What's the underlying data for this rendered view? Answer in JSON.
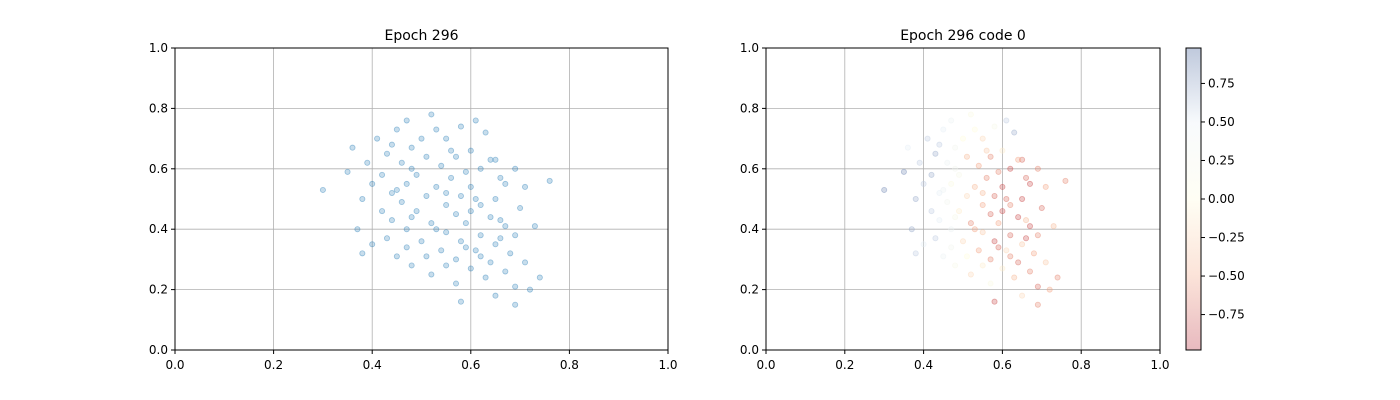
{
  "figure": {
    "background": "#ffffff",
    "grid_color": "#b0b0b0"
  },
  "chart_data": [
    {
      "type": "scatter",
      "title": "Epoch 296",
      "xlabel": "",
      "ylabel": "",
      "xlim": [
        0,
        1
      ],
      "ylim": [
        0,
        1
      ],
      "xticks": [
        "0.0",
        "0.2",
        "0.4",
        "0.6",
        "0.8",
        "1.0"
      ],
      "yticks": [
        "0.0",
        "0.2",
        "0.4",
        "0.6",
        "0.8",
        "1.0"
      ],
      "grid": true,
      "marker_color": "#1f77b4",
      "marker_alpha": 0.25,
      "points": [
        [
          0.52,
          0.78
        ],
        [
          0.47,
          0.76
        ],
        [
          0.61,
          0.76
        ],
        [
          0.58,
          0.74
        ],
        [
          0.53,
          0.73
        ],
        [
          0.45,
          0.73
        ],
        [
          0.63,
          0.72
        ],
        [
          0.41,
          0.7
        ],
        [
          0.55,
          0.7
        ],
        [
          0.36,
          0.67
        ],
        [
          0.48,
          0.67
        ],
        [
          0.6,
          0.66
        ],
        [
          0.43,
          0.65
        ],
        [
          0.51,
          0.64
        ],
        [
          0.57,
          0.64
        ],
        [
          0.65,
          0.63
        ],
        [
          0.39,
          0.62
        ],
        [
          0.46,
          0.62
        ],
        [
          0.54,
          0.61
        ],
        [
          0.62,
          0.6
        ],
        [
          0.69,
          0.6
        ],
        [
          0.35,
          0.59
        ],
        [
          0.42,
          0.58
        ],
        [
          0.49,
          0.58
        ],
        [
          0.56,
          0.57
        ],
        [
          0.66,
          0.57
        ],
        [
          0.76,
          0.56
        ],
        [
          0.4,
          0.55
        ],
        [
          0.47,
          0.55
        ],
        [
          0.53,
          0.54
        ],
        [
          0.6,
          0.54
        ],
        [
          0.71,
          0.54
        ],
        [
          0.3,
          0.53
        ],
        [
          0.44,
          0.52
        ],
        [
          0.51,
          0.51
        ],
        [
          0.58,
          0.51
        ],
        [
          0.65,
          0.5
        ],
        [
          0.38,
          0.5
        ],
        [
          0.46,
          0.49
        ],
        [
          0.55,
          0.48
        ],
        [
          0.62,
          0.48
        ],
        [
          0.7,
          0.47
        ],
        [
          0.42,
          0.46
        ],
        [
          0.49,
          0.46
        ],
        [
          0.57,
          0.45
        ],
        [
          0.64,
          0.44
        ],
        [
          0.44,
          0.43
        ],
        [
          0.52,
          0.42
        ],
        [
          0.59,
          0.42
        ],
        [
          0.67,
          0.41
        ],
        [
          0.73,
          0.41
        ],
        [
          0.37,
          0.4
        ],
        [
          0.47,
          0.4
        ],
        [
          0.55,
          0.39
        ],
        [
          0.62,
          0.38
        ],
        [
          0.69,
          0.38
        ],
        [
          0.43,
          0.37
        ],
        [
          0.5,
          0.36
        ],
        [
          0.58,
          0.36
        ],
        [
          0.65,
          0.35
        ],
        [
          0.4,
          0.35
        ],
        [
          0.47,
          0.34
        ],
        [
          0.54,
          0.33
        ],
        [
          0.61,
          0.33
        ],
        [
          0.68,
          0.32
        ],
        [
          0.38,
          0.32
        ],
        [
          0.51,
          0.31
        ],
        [
          0.57,
          0.3
        ],
        [
          0.64,
          0.29
        ],
        [
          0.71,
          0.29
        ],
        [
          0.48,
          0.28
        ],
        [
          0.6,
          0.27
        ],
        [
          0.67,
          0.26
        ],
        [
          0.52,
          0.25
        ],
        [
          0.63,
          0.24
        ],
        [
          0.74,
          0.24
        ],
        [
          0.57,
          0.22
        ],
        [
          0.69,
          0.21
        ],
        [
          0.72,
          0.2
        ],
        [
          0.65,
          0.18
        ],
        [
          0.58,
          0.16
        ],
        [
          0.69,
          0.15
        ],
        [
          0.5,
          0.7
        ],
        [
          0.44,
          0.68
        ],
        [
          0.56,
          0.66
        ],
        [
          0.64,
          0.63
        ],
        [
          0.48,
          0.6
        ],
        [
          0.59,
          0.59
        ],
        [
          0.67,
          0.55
        ],
        [
          0.45,
          0.53
        ],
        [
          0.55,
          0.52
        ],
        [
          0.61,
          0.5
        ],
        [
          0.48,
          0.44
        ],
        [
          0.6,
          0.46
        ],
        [
          0.66,
          0.43
        ],
        [
          0.53,
          0.4
        ],
        [
          0.59,
          0.34
        ],
        [
          0.66,
          0.37
        ],
        [
          0.45,
          0.31
        ],
        [
          0.55,
          0.28
        ],
        [
          0.62,
          0.31
        ]
      ]
    },
    {
      "type": "scatter",
      "title": "Epoch 296 code 0",
      "xlabel": "",
      "ylabel": "",
      "xlim": [
        0,
        1
      ],
      "ylim": [
        0,
        1
      ],
      "xticks": [
        "0.0",
        "0.2",
        "0.4",
        "0.6",
        "0.8",
        "1.0"
      ],
      "yticks": [
        "0.0",
        "0.2",
        "0.4",
        "0.6",
        "0.8",
        "1.0"
      ],
      "grid": true,
      "marker_alpha": 0.3,
      "colorbar": {
        "min": -0.98,
        "max": 0.98,
        "ticks": [
          0.75,
          0.5,
          0.25,
          0.0,
          -0.25,
          -0.5,
          -0.75
        ],
        "tick_labels": [
          "0.75",
          "0.50",
          "0.25",
          "0.00",
          "−0.25",
          "−0.50",
          "−0.75"
        ],
        "colormap_stops": [
          "#b2182b",
          "#f4a582",
          "#fffcdb",
          "#e8f0f8",
          "#2b4c8c"
        ]
      },
      "points": [
        [
          0.52,
          0.78,
          0.1
        ],
        [
          0.47,
          0.76,
          0.4
        ],
        [
          0.61,
          0.76,
          0.6
        ],
        [
          0.58,
          0.74,
          0.2
        ],
        [
          0.53,
          0.73,
          0.0
        ],
        [
          0.45,
          0.73,
          0.5
        ],
        [
          0.63,
          0.72,
          0.7
        ],
        [
          0.41,
          0.7,
          0.6
        ],
        [
          0.55,
          0.7,
          -0.2
        ],
        [
          0.36,
          0.67,
          0.5
        ],
        [
          0.48,
          0.67,
          0.3
        ],
        [
          0.6,
          0.66,
          -0.1
        ],
        [
          0.43,
          0.65,
          0.7
        ],
        [
          0.51,
          0.64,
          -0.4
        ],
        [
          0.57,
          0.64,
          -0.6
        ],
        [
          0.65,
          0.63,
          -0.7
        ],
        [
          0.39,
          0.62,
          0.6
        ],
        [
          0.46,
          0.62,
          0.4
        ],
        [
          0.54,
          0.61,
          -0.5
        ],
        [
          0.62,
          0.6,
          -0.8
        ],
        [
          0.69,
          0.6,
          -0.6
        ],
        [
          0.35,
          0.59,
          0.8
        ],
        [
          0.42,
          0.58,
          0.7
        ],
        [
          0.49,
          0.58,
          0.2
        ],
        [
          0.56,
          0.57,
          -0.6
        ],
        [
          0.66,
          0.57,
          -0.7
        ],
        [
          0.76,
          0.56,
          -0.6
        ],
        [
          0.4,
          0.55,
          0.6
        ],
        [
          0.47,
          0.55,
          0.1
        ],
        [
          0.53,
          0.54,
          -0.4
        ],
        [
          0.6,
          0.54,
          -0.8
        ],
        [
          0.71,
          0.54,
          -0.5
        ],
        [
          0.3,
          0.53,
          0.8
        ],
        [
          0.44,
          0.52,
          0.5
        ],
        [
          0.51,
          0.51,
          -0.2
        ],
        [
          0.58,
          0.51,
          -0.7
        ],
        [
          0.65,
          0.5,
          -0.8
        ],
        [
          0.38,
          0.5,
          0.7
        ],
        [
          0.46,
          0.49,
          0.3
        ],
        [
          0.55,
          0.48,
          -0.5
        ],
        [
          0.62,
          0.48,
          -0.6
        ],
        [
          0.7,
          0.47,
          -0.7
        ],
        [
          0.42,
          0.46,
          0.6
        ],
        [
          0.49,
          0.46,
          -0.1
        ],
        [
          0.57,
          0.45,
          -0.7
        ],
        [
          0.64,
          0.44,
          -0.8
        ],
        [
          0.44,
          0.43,
          0.5
        ],
        [
          0.52,
          0.42,
          -0.6
        ],
        [
          0.59,
          0.42,
          -0.5
        ],
        [
          0.67,
          0.41,
          -0.8
        ],
        [
          0.73,
          0.41,
          -0.4
        ],
        [
          0.37,
          0.4,
          0.7
        ],
        [
          0.47,
          0.4,
          0.4
        ],
        [
          0.55,
          0.39,
          -0.3
        ],
        [
          0.62,
          0.38,
          -0.7
        ],
        [
          0.69,
          0.38,
          -0.6
        ],
        [
          0.43,
          0.37,
          0.6
        ],
        [
          0.5,
          0.36,
          -0.2
        ],
        [
          0.58,
          0.36,
          -0.8
        ],
        [
          0.65,
          0.35,
          -0.3
        ],
        [
          0.4,
          0.35,
          0.5
        ],
        [
          0.47,
          0.34,
          0.3
        ],
        [
          0.54,
          0.33,
          -0.5
        ],
        [
          0.61,
          0.33,
          -0.2
        ],
        [
          0.68,
          0.32,
          -0.5
        ],
        [
          0.38,
          0.32,
          0.6
        ],
        [
          0.51,
          0.31,
          0.0
        ],
        [
          0.57,
          0.3,
          -0.6
        ],
        [
          0.64,
          0.29,
          -0.7
        ],
        [
          0.71,
          0.29,
          -0.3
        ],
        [
          0.48,
          0.28,
          0.2
        ],
        [
          0.6,
          0.27,
          -0.1
        ],
        [
          0.67,
          0.26,
          -0.6
        ],
        [
          0.52,
          0.25,
          -0.2
        ],
        [
          0.63,
          0.24,
          -0.4
        ],
        [
          0.74,
          0.24,
          -0.6
        ],
        [
          0.57,
          0.22,
          0.1
        ],
        [
          0.69,
          0.21,
          -0.7
        ],
        [
          0.72,
          0.2,
          -0.5
        ],
        [
          0.65,
          0.18,
          -0.2
        ],
        [
          0.58,
          0.16,
          -0.8
        ],
        [
          0.69,
          0.15,
          -0.6
        ],
        [
          0.5,
          0.7,
          0.0
        ],
        [
          0.44,
          0.68,
          0.6
        ],
        [
          0.56,
          0.66,
          -0.3
        ],
        [
          0.64,
          0.63,
          -0.5
        ],
        [
          0.48,
          0.6,
          0.3
        ],
        [
          0.59,
          0.59,
          -0.6
        ],
        [
          0.67,
          0.55,
          -0.8
        ],
        [
          0.45,
          0.53,
          0.4
        ],
        [
          0.55,
          0.52,
          -0.4
        ],
        [
          0.61,
          0.5,
          -0.7
        ],
        [
          0.48,
          0.44,
          0.2
        ],
        [
          0.6,
          0.46,
          -0.8
        ],
        [
          0.66,
          0.43,
          -0.4
        ],
        [
          0.53,
          0.4,
          -0.5
        ],
        [
          0.59,
          0.34,
          -0.7
        ],
        [
          0.66,
          0.37,
          -0.8
        ],
        [
          0.45,
          0.31,
          0.4
        ],
        [
          0.55,
          0.28,
          -0.1
        ],
        [
          0.62,
          0.31,
          -0.6
        ]
      ]
    }
  ]
}
